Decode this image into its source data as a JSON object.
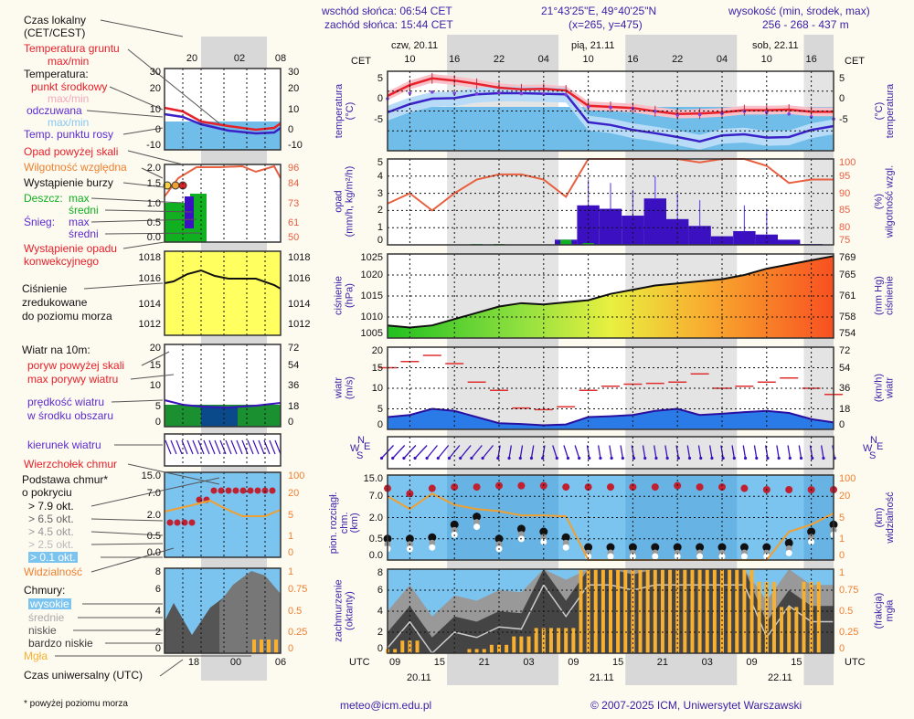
{
  "header": {
    "sunrise": "wschód słońca: 06:54 CET",
    "sunset": "zachód słońca: 15:44 CET",
    "coords": "21°43'25\"E, 49°40'25\"N",
    "grid": "(x=265,  y=475)",
    "altitude_label": "wysokość (min, środek, max)",
    "altitude_values": "256 - 268 - 437 m"
  },
  "legend": {
    "local_time": "Czas lokalny",
    "local_time_sub": "(CET/CEST)",
    "ground_temp": "Temperatura gruntu",
    "ground_temp_sub": "max/min",
    "temperature": "Temperatura:",
    "midpoint": "punkt środkowy",
    "midpoint_sub": "max/min",
    "feels_like": "odczuwana",
    "feels_like_sub": "max/min",
    "dew_point": "Temp. punktu rosy",
    "precip_over": "Opad powyżej skali",
    "humidity": "Wilgotność względna",
    "storm": "Wystąpienie burzy",
    "rain": "Deszcz:",
    "rain_max": "max",
    "rain_avg": "średni",
    "snow": "Śnieg:",
    "snow_max": "max",
    "snow_avg": "średni",
    "convective": "Wystąpienie opadu",
    "convective_sub": "konwekcyjnego",
    "pressure": "Ciśnienie",
    "pressure_sub1": "zredukowane",
    "pressure_sub2": "do poziomu morza",
    "wind": "Wiatr na 10m:",
    "gust_over": "poryw powyżej skali",
    "gust_max": "max porywy wiatru",
    "wind_speed": "prędkość wiatru",
    "wind_speed_sub": "w środku obszaru",
    "wind_dir": "kierunek wiatru",
    "cloud_top": "Wierzchołek chmur",
    "cloud_base": "Podstawa chmur*",
    "cloud_base_sub": "o pokryciu",
    "okt_79": "> 7.9 okt.",
    "okt_65": "> 6.5 okt.",
    "okt_45": "> 4.5 okt.",
    "okt_25": "> 2.5 okt.",
    "okt_01": "> 0.1 okt.",
    "visibility": "Widzialność",
    "clouds": "Chmury:",
    "high": "wysokie",
    "mid": "średnie",
    "low": "niskie",
    "very_low": "bardzo niskie",
    "fog": "Mgła",
    "utc_time": "Czas uniwersalny (UTC)",
    "footnote": "* powyżej poziomu morza",
    "legend_cet_ticks": [
      "20",
      "02",
      "08"
    ],
    "legend_utc_ticks": [
      "18",
      "00",
      "06"
    ],
    "temp_ticks": [
      "30",
      "20",
      "10",
      "0",
      "-10"
    ],
    "precip_ticks_l": [
      "2.0",
      "1.5",
      "1.0",
      "0.5",
      "0.0"
    ],
    "precip_ticks_r": [
      "96",
      "84",
      "73",
      "61",
      "50"
    ],
    "pressure_ticks": [
      "1018",
      "1016",
      "1014",
      "1012"
    ],
    "wind_ticks_l": [
      "20",
      "15",
      "10",
      "5",
      "0"
    ],
    "wind_ticks_r": [
      "72",
      "54",
      "36",
      "18",
      "0"
    ],
    "cloud_ticks_l": [
      "15.0",
      "7.0",
      "2.0",
      "0.5",
      "0.0"
    ],
    "cloud_ticks_r": [
      "100",
      "20",
      "5",
      "1",
      "0"
    ],
    "cover_ticks_l": [
      "8",
      "6",
      "4",
      "2",
      "0"
    ],
    "cover_ticks_r": [
      "1",
      "0.75",
      "0.5",
      "0.25",
      "0"
    ]
  },
  "main": {
    "cet_label": "CET",
    "utc_label": "UTC",
    "days_top": [
      "czw, 20.11",
      "pią, 21.11",
      "sob, 22.11"
    ],
    "days_bottom": [
      "20.11",
      "21.11",
      "22.11"
    ],
    "cet_ticks": [
      "10",
      "16",
      "22",
      "04",
      "10",
      "16",
      "22",
      "04",
      "10",
      "16"
    ],
    "utc_ticks": [
      "09",
      "15",
      "21",
      "03",
      "09",
      "15",
      "21",
      "03",
      "09",
      "15"
    ],
    "panels": {
      "temp": {
        "ylabel": "temperatura",
        "unit": "(°C)",
        "ticks": [
          "5",
          "0",
          "-5"
        ],
        "rlabel": "temperatura",
        "runit": "(°C)",
        "rticks": [
          "5",
          "0",
          "-5"
        ]
      },
      "precip": {
        "ylabel": "opad",
        "unit": "(mm/h, kg/m²/h)",
        "ticks": [
          "5",
          "4",
          "3",
          "2",
          "1",
          "0"
        ],
        "rlabel": "wilgotność wzgl.",
        "runit": "(%)",
        "rticks": [
          "100",
          "95",
          "90",
          "85",
          "80",
          "75"
        ]
      },
      "pressure": {
        "ylabel": "ciśnienie",
        "unit": "(hPa)",
        "ticks": [
          "1025",
          "1020",
          "1015",
          "1010",
          "1005"
        ],
        "rlabel": "ciśnienie",
        "runit": "(mm Hg)",
        "rticks": [
          "769",
          "765",
          "761",
          "758",
          "754"
        ]
      },
      "wind": {
        "ylabel": "wiatr",
        "unit": "(m/s)",
        "ticks": [
          "20",
          "15",
          "10",
          "5",
          "0"
        ],
        "rlabel": "wiatr",
        "runit": "(km/h)",
        "rticks": [
          "72",
          "54",
          "36",
          "18",
          "0"
        ]
      },
      "winddir": {
        "compass": [
          "N",
          "W",
          "E",
          "S"
        ]
      },
      "cloud": {
        "ylabel": "pion. rozciągł. chm.",
        "unit": "(km)",
        "ticks": [
          "15.0",
          "7.0",
          "2.0",
          "0.5",
          "0.0"
        ],
        "rlabel": "widzialność",
        "runit": "(km)",
        "rticks": [
          "100",
          "20",
          "5",
          "1",
          "0"
        ]
      },
      "cover": {
        "ylabel": "zachmurzenie",
        "unit": "(oktanty)",
        "ticks": [
          "8",
          "6",
          "4",
          "2",
          "0"
        ],
        "rlabel": "mgła",
        "runit": "(frakcja)",
        "rticks": [
          "1",
          "0.75",
          "0.5",
          "0.25",
          "0"
        ]
      }
    }
  },
  "footer": {
    "email": "meteo@icm.edu.pl",
    "copyright": "© 2007-2025 ICM, Uniwersytet Warszawski"
  },
  "colors": {
    "background": "#fdfaf0",
    "night_shade": "#d8d8d8",
    "temp_red": "#e8202a",
    "feels_blue": "#3a22c8",
    "sky_blue": "#7cc4f0",
    "rain_green": "#10b020",
    "snow_purple": "#3a10c0",
    "humidity": "#e86040",
    "visibility": "#f0a030",
    "fog": "#f8b030"
  },
  "chart_data": [
    {
      "type": "line",
      "title": "temperatura",
      "ylabel": "(°C)",
      "ylim": [
        -8,
        6.5
      ],
      "x_hours_from_start": [
        0,
        3,
        6,
        9,
        12,
        15,
        18,
        21,
        24,
        27,
        30,
        33,
        36,
        39,
        42,
        45,
        48,
        51,
        54,
        57,
        60
      ],
      "series": [
        {
          "name": "punkt środkowy",
          "values": [
            2,
            4,
            5.2,
            4.8,
            4.2,
            3.5,
            3.2,
            3.3,
            3,
            0.2,
            0,
            -0.2,
            -0.8,
            -1.3,
            -1.2,
            -1,
            -0.6,
            -0.6,
            -0.5,
            -0.9,
            -0.9
          ]
        },
        {
          "name": "odczuwana",
          "values": [
            -1,
            0.5,
            1.5,
            1.6,
            2.3,
            2.5,
            2.5,
            2.4,
            2.3,
            -2.8,
            -3.3,
            -4.2,
            -4.8,
            -5.5,
            -6.3,
            -5.2,
            -5,
            -5.6,
            -5.5,
            -4.2,
            -3.5
          ]
        },
        {
          "name": "Temp. punktu rosy",
          "values": [
            1.5,
            2.5,
            2.7,
            2.5,
            2.4,
            2.6,
            2.4,
            2.3,
            2.2,
            0,
            -0.1,
            -0.3,
            -0.8,
            -1.5,
            -1.4,
            -1.2,
            -0.8,
            -1,
            -1.3,
            -1.8,
            -2.2
          ]
        }
      ]
    },
    {
      "type": "bar",
      "title": "opad / wilgotność wzgl.",
      "ylabel": "(mm/h, kg/m²/h)",
      "ylim": [
        0,
        5
      ],
      "y2lim": [
        75,
        100
      ],
      "x_hours_from_start": [
        0,
        3,
        6,
        9,
        12,
        15,
        18,
        21,
        24,
        27,
        30,
        33,
        36,
        39,
        42,
        45,
        48,
        51,
        54,
        57,
        60
      ],
      "series": [
        {
          "name": "Śnieg średni",
          "values": [
            0,
            0,
            0,
            0,
            0,
            0,
            0,
            0,
            0.3,
            2.3,
            2.1,
            1.7,
            2.7,
            1.5,
            1.1,
            0.5,
            0.8,
            0.6,
            0.3,
            0.05,
            0
          ]
        },
        {
          "name": "Deszcz średni",
          "values": [
            0,
            0,
            0,
            0.02,
            0.05,
            0.05,
            0.02,
            0,
            0.3,
            0.1,
            0,
            0,
            0,
            0,
            0,
            0,
            0,
            0,
            0,
            0,
            0
          ]
        },
        {
          "name": "Wilgotność względna (%)",
          "values": [
            87,
            90,
            85,
            90,
            94,
            95.5,
            95.5,
            94,
            89,
            100,
            100,
            100,
            100,
            100,
            99,
            100,
            100,
            98,
            93,
            94,
            94
          ]
        }
      ]
    },
    {
      "type": "area",
      "title": "ciśnienie",
      "ylabel": "(hPa)",
      "ylim": [
        1005,
        1025
      ],
      "x_hours_from_start": [
        0,
        3,
        6,
        9,
        12,
        15,
        18,
        21,
        24,
        27,
        30,
        33,
        36,
        39,
        42,
        45,
        48,
        51,
        54,
        57,
        60
      ],
      "series": [
        {
          "name": "ciśnienie",
          "values": [
            1008,
            1007.5,
            1008,
            1009.5,
            1011,
            1012.5,
            1013.3,
            1013,
            1013.5,
            1014,
            1015.5,
            1016.5,
            1017.5,
            1018,
            1018.5,
            1019,
            1020,
            1021.5,
            1022.5,
            1023.5,
            1024.5
          ]
        }
      ]
    },
    {
      "type": "line",
      "title": "wiatr",
      "ylabel": "(m/s)",
      "ylim": [
        0,
        20
      ],
      "x_hours_from_start": [
        0,
        3,
        6,
        9,
        12,
        15,
        18,
        21,
        24,
        27,
        30,
        33,
        36,
        39,
        42,
        45,
        48,
        51,
        54,
        57,
        60
      ],
      "series": [
        {
          "name": "max porywy wiatru",
          "values": [
            15,
            16.5,
            18,
            16,
            11.5,
            9.5,
            5.2,
            4.8,
            5.5,
            9.5,
            10.5,
            11,
            11.2,
            11.5,
            13.5,
            10,
            10.5,
            11.5,
            12.5,
            10,
            8.5
          ]
        },
        {
          "name": "prędkość wiatru",
          "values": [
            3,
            3.5,
            5,
            4.5,
            3,
            1.5,
            1.3,
            1,
            1.2,
            3,
            3.2,
            3.5,
            4.5,
            5,
            3.5,
            3.8,
            4.2,
            4.5,
            4,
            2.5,
            1.7
          ]
        }
      ]
    },
    {
      "type": "scatter",
      "title": "pion. rozciągł. chm. / widzialność",
      "ylabel": "(km)",
      "ylim": [
        0,
        15
      ],
      "x_hours_from_start": [
        0,
        3,
        6,
        9,
        12,
        15,
        18,
        21,
        24,
        27,
        30,
        33,
        36,
        39,
        42,
        45,
        48,
        51,
        54,
        57,
        60
      ],
      "series": [
        {
          "name": "Wierzchołek chmur",
          "values": [
            10,
            8,
            10,
            10.5,
            10.5,
            11,
            11,
            11,
            10.5,
            10.5,
            10.5,
            10.5,
            10.5,
            11,
            10.5,
            10.5,
            10,
            9.5,
            9.5,
            9.5,
            9.5
          ]
        },
        {
          "name": "Podstawa > 7.9 okt.",
          "values": [
            0.5,
            0.5,
            0.6,
            1.5,
            2.2,
            0.5,
            1.2,
            1,
            0.6,
            0.3,
            0.3,
            0.3,
            0.3,
            0.3,
            0.3,
            0.3,
            0.3,
            0.3,
            0.4,
            1,
            1.5
          ]
        },
        {
          "name": "Widzialność",
          "values": [
            7,
            4,
            8,
            5,
            4,
            3.5,
            2.5,
            2.5,
            2.3,
            0,
            0,
            0,
            0,
            0,
            0,
            0,
            0,
            0,
            1,
            1.5,
            3
          ]
        }
      ]
    },
    {
      "type": "area",
      "title": "zachmurzenie / mgła",
      "ylabel": "(oktanty)",
      "ylim": [
        0,
        8
      ],
      "y2lim": [
        0,
        1
      ],
      "x_hours_from_start": [
        0,
        3,
        6,
        9,
        12,
        15,
        18,
        21,
        24,
        27,
        30,
        33,
        36,
        39,
        42,
        45,
        48,
        51,
        54,
        57,
        60
      ],
      "series": [
        {
          "name": "zachmurzenie całkowite",
          "values": [
            2,
            4.5,
            1.5,
            3.5,
            3,
            4,
            3.8,
            8,
            5,
            8,
            8,
            7.5,
            8,
            8,
            8,
            8,
            8,
            3,
            6,
            4.5,
            4.5
          ]
        },
        {
          "name": "Mgła (frakcja)",
          "values": [
            0.05,
            0.15,
            0,
            0,
            0.05,
            0.1,
            0.2,
            0.3,
            0.3,
            1,
            1,
            1,
            1,
            1,
            1,
            1,
            1,
            0.85,
            0.55,
            0.85,
            0
          ]
        }
      ]
    }
  ]
}
